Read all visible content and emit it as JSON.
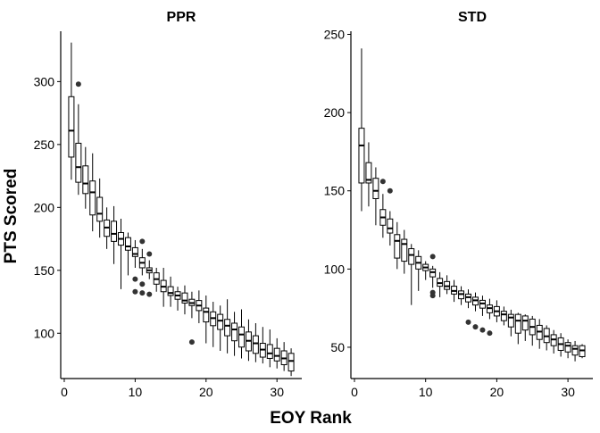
{
  "chart_data": {
    "type": "boxplot",
    "xlabel": "EOY Rank",
    "ylabel": "PTS Scored",
    "panels": [
      {
        "title": "PPR",
        "xlim": [
          -0.5,
          33.5
        ],
        "ylim": [
          64,
          340
        ],
        "x_ticks": [
          0,
          10,
          20,
          30
        ],
        "y_ticks": [
          100,
          150,
          200,
          250,
          300
        ],
        "boxes": [
          {
            "rank": 1,
            "min": 222,
            "q1": 240,
            "median": 261,
            "q3": 288,
            "max": 331
          },
          {
            "rank": 2,
            "min": 210,
            "q1": 220,
            "median": 232,
            "q3": 251,
            "max": 282
          },
          {
            "rank": 3,
            "min": 199,
            "q1": 211,
            "median": 219,
            "q3": 233,
            "max": 248
          },
          {
            "rank": 4,
            "min": 181,
            "q1": 194,
            "median": 212,
            "q3": 221,
            "max": 243
          },
          {
            "rank": 5,
            "min": 176,
            "q1": 189,
            "median": 195,
            "q3": 208,
            "max": 223
          },
          {
            "rank": 6,
            "min": 167,
            "q1": 177,
            "median": 184,
            "q3": 190,
            "max": 200
          },
          {
            "rank": 7,
            "min": 155,
            "q1": 173,
            "median": 179,
            "q3": 189,
            "max": 201
          },
          {
            "rank": 8,
            "min": 135,
            "q1": 170,
            "median": 175,
            "q3": 180,
            "max": 191
          },
          {
            "rank": 9,
            "min": 146,
            "q1": 166,
            "median": 169,
            "q3": 176,
            "max": 180
          },
          {
            "rank": 10,
            "min": 152,
            "q1": 161,
            "median": 163,
            "q3": 168,
            "max": 174
          },
          {
            "rank": 11,
            "min": 146,
            "q1": 152,
            "median": 156,
            "q3": 160,
            "max": 167
          },
          {
            "rank": 12,
            "min": 143,
            "q1": 148,
            "median": 150,
            "q3": 152,
            "max": 158
          },
          {
            "rank": 13,
            "min": 133,
            "q1": 139,
            "median": 143,
            "q3": 148,
            "max": 152
          },
          {
            "rank": 14,
            "min": 121,
            "q1": 133,
            "median": 137,
            "q3": 142,
            "max": 152
          },
          {
            "rank": 15,
            "min": 121,
            "q1": 130,
            "median": 132,
            "q3": 137,
            "max": 145
          },
          {
            "rank": 16,
            "min": 118,
            "q1": 127,
            "median": 130,
            "q3": 133,
            "max": 137
          },
          {
            "rank": 17,
            "min": 115,
            "q1": 124,
            "median": 126,
            "q3": 132,
            "max": 138
          },
          {
            "rank": 18,
            "min": 112,
            "q1": 122,
            "median": 124,
            "q3": 127,
            "max": 133
          },
          {
            "rank": 19,
            "min": 108,
            "q1": 118,
            "median": 122,
            "q3": 126,
            "max": 134
          },
          {
            "rank": 20,
            "min": 92,
            "q1": 109,
            "median": 117,
            "q3": 120,
            "max": 130
          },
          {
            "rank": 21,
            "min": 89,
            "q1": 106,
            "median": 112,
            "q3": 117,
            "max": 125
          },
          {
            "rank": 22,
            "min": 86,
            "q1": 103,
            "median": 110,
            "q3": 115,
            "max": 122
          },
          {
            "rank": 23,
            "min": 84,
            "q1": 98,
            "median": 106,
            "q3": 111,
            "max": 127
          },
          {
            "rank": 24,
            "min": 82,
            "q1": 94,
            "median": 103,
            "q3": 108,
            "max": 117
          },
          {
            "rank": 25,
            "min": 80,
            "q1": 89,
            "median": 99,
            "q3": 105,
            "max": 119
          },
          {
            "rank": 26,
            "min": 78,
            "q1": 86,
            "median": 94,
            "q3": 101,
            "max": 111
          },
          {
            "rank": 27,
            "min": 77,
            "q1": 84,
            "median": 92,
            "q3": 98,
            "max": 108
          },
          {
            "rank": 28,
            "min": 76,
            "q1": 81,
            "median": 87,
            "q3": 92,
            "max": 105
          },
          {
            "rank": 29,
            "min": 73,
            "q1": 80,
            "median": 84,
            "q3": 91,
            "max": 103
          },
          {
            "rank": 30,
            "min": 72,
            "q1": 78,
            "median": 82,
            "q3": 88,
            "max": 96
          },
          {
            "rank": 31,
            "min": 70,
            "q1": 75,
            "median": 80,
            "q3": 86,
            "max": 93
          },
          {
            "rank": 32,
            "min": 66,
            "q1": 70,
            "median": 78,
            "q3": 84,
            "max": 88
          }
        ],
        "outliers": [
          {
            "rank": 2,
            "value": 298
          },
          {
            "rank": 10,
            "value": 143
          },
          {
            "rank": 10,
            "value": 133
          },
          {
            "rank": 11,
            "value": 173
          },
          {
            "rank": 11,
            "value": 139
          },
          {
            "rank": 11,
            "value": 132
          },
          {
            "rank": 12,
            "value": 163
          },
          {
            "rank": 12,
            "value": 131
          },
          {
            "rank": 18,
            "value": 93
          }
        ]
      },
      {
        "title": "STD",
        "xlim": [
          -0.5,
          33.5
        ],
        "ylim": [
          30,
          252
        ],
        "x_ticks": [
          0,
          10,
          20,
          30
        ],
        "y_ticks": [
          50,
          100,
          150,
          200,
          250
        ],
        "boxes": [
          {
            "rank": 1,
            "min": 137,
            "q1": 155,
            "median": 179,
            "q3": 190,
            "max": 241
          },
          {
            "rank": 2,
            "min": 140,
            "q1": 155,
            "median": 157,
            "q3": 168,
            "max": 181
          },
          {
            "rank": 3,
            "min": 128,
            "q1": 145,
            "median": 150,
            "q3": 158,
            "max": 165
          },
          {
            "rank": 4,
            "min": 120,
            "q1": 128,
            "median": 133,
            "q3": 138,
            "max": 148
          },
          {
            "rank": 5,
            "min": 115,
            "q1": 123,
            "median": 126,
            "q3": 132,
            "max": 137
          },
          {
            "rank": 6,
            "min": 100,
            "q1": 107,
            "median": 118,
            "q3": 122,
            "max": 130
          },
          {
            "rank": 7,
            "min": 97,
            "q1": 105,
            "median": 116,
            "q3": 119,
            "max": 125
          },
          {
            "rank": 8,
            "min": 77,
            "q1": 103,
            "median": 109,
            "q3": 113,
            "max": 116
          },
          {
            "rank": 9,
            "min": 86,
            "q1": 100,
            "median": 104,
            "q3": 108,
            "max": 112
          },
          {
            "rank": 10,
            "min": 93,
            "q1": 99,
            "median": 101,
            "q3": 103,
            "max": 105
          },
          {
            "rank": 11,
            "min": 88,
            "q1": 95,
            "median": 98,
            "q3": 100,
            "max": 102
          },
          {
            "rank": 12,
            "min": 82,
            "q1": 89,
            "median": 91,
            "q3": 94,
            "max": 98
          },
          {
            "rank": 13,
            "min": 84,
            "q1": 87,
            "median": 89,
            "q3": 92,
            "max": 96
          },
          {
            "rank": 14,
            "min": 79,
            "q1": 84,
            "median": 86,
            "q3": 89,
            "max": 93
          },
          {
            "rank": 15,
            "min": 77,
            "q1": 81,
            "median": 84,
            "q3": 86,
            "max": 89
          },
          {
            "rank": 16,
            "min": 75,
            "q1": 79,
            "median": 82,
            "q3": 84,
            "max": 87
          },
          {
            "rank": 17,
            "min": 73,
            "q1": 77,
            "median": 80,
            "q3": 82,
            "max": 85
          },
          {
            "rank": 18,
            "min": 70,
            "q1": 75,
            "median": 78,
            "q3": 80,
            "max": 83
          },
          {
            "rank": 19,
            "min": 68,
            "q1": 72,
            "median": 75,
            "q3": 77,
            "max": 81
          },
          {
            "rank": 20,
            "min": 66,
            "q1": 70,
            "median": 73,
            "q3": 76,
            "max": 80
          },
          {
            "rank": 21,
            "min": 64,
            "q1": 67,
            "median": 71,
            "q3": 73,
            "max": 76
          },
          {
            "rank": 22,
            "min": 57,
            "q1": 63,
            "median": 69,
            "q3": 71,
            "max": 74
          },
          {
            "rank": 23,
            "min": 52,
            "q1": 59,
            "median": 67,
            "q3": 71,
            "max": 72
          },
          {
            "rank": 24,
            "min": 54,
            "q1": 61,
            "median": 67,
            "q3": 70,
            "max": 71
          },
          {
            "rank": 25,
            "min": 51,
            "q1": 58,
            "median": 63,
            "q3": 68,
            "max": 70
          },
          {
            "rank": 26,
            "min": 49,
            "q1": 55,
            "median": 60,
            "q3": 64,
            "max": 68
          },
          {
            "rank": 27,
            "min": 48,
            "q1": 53,
            "median": 57,
            "q3": 62,
            "max": 64
          },
          {
            "rank": 28,
            "min": 46,
            "q1": 51,
            "median": 55,
            "q3": 58,
            "max": 61
          },
          {
            "rank": 29,
            "min": 44,
            "q1": 48,
            "median": 52,
            "q3": 56,
            "max": 59
          },
          {
            "rank": 30,
            "min": 43,
            "q1": 47,
            "median": 51,
            "q3": 53,
            "max": 55
          },
          {
            "rank": 31,
            "min": 41,
            "q1": 45,
            "median": 49,
            "q3": 51,
            "max": 54
          },
          {
            "rank": 32,
            "min": 43,
            "q1": 44,
            "median": 48,
            "q3": 51,
            "max": 52
          }
        ],
        "outliers": [
          {
            "rank": 4,
            "value": 156
          },
          {
            "rank": 5,
            "value": 150
          },
          {
            "rank": 11,
            "value": 108
          },
          {
            "rank": 11,
            "value": 85
          },
          {
            "rank": 11,
            "value": 83
          },
          {
            "rank": 16,
            "value": 66
          },
          {
            "rank": 17,
            "value": 63
          },
          {
            "rank": 18,
            "value": 61
          },
          {
            "rank": 19,
            "value": 59
          }
        ]
      }
    ],
    "grid": false,
    "legend": "none",
    "colors": {
      "box_fill": "#ffffff",
      "stroke": "#000000",
      "outlier": "#333333"
    }
  }
}
